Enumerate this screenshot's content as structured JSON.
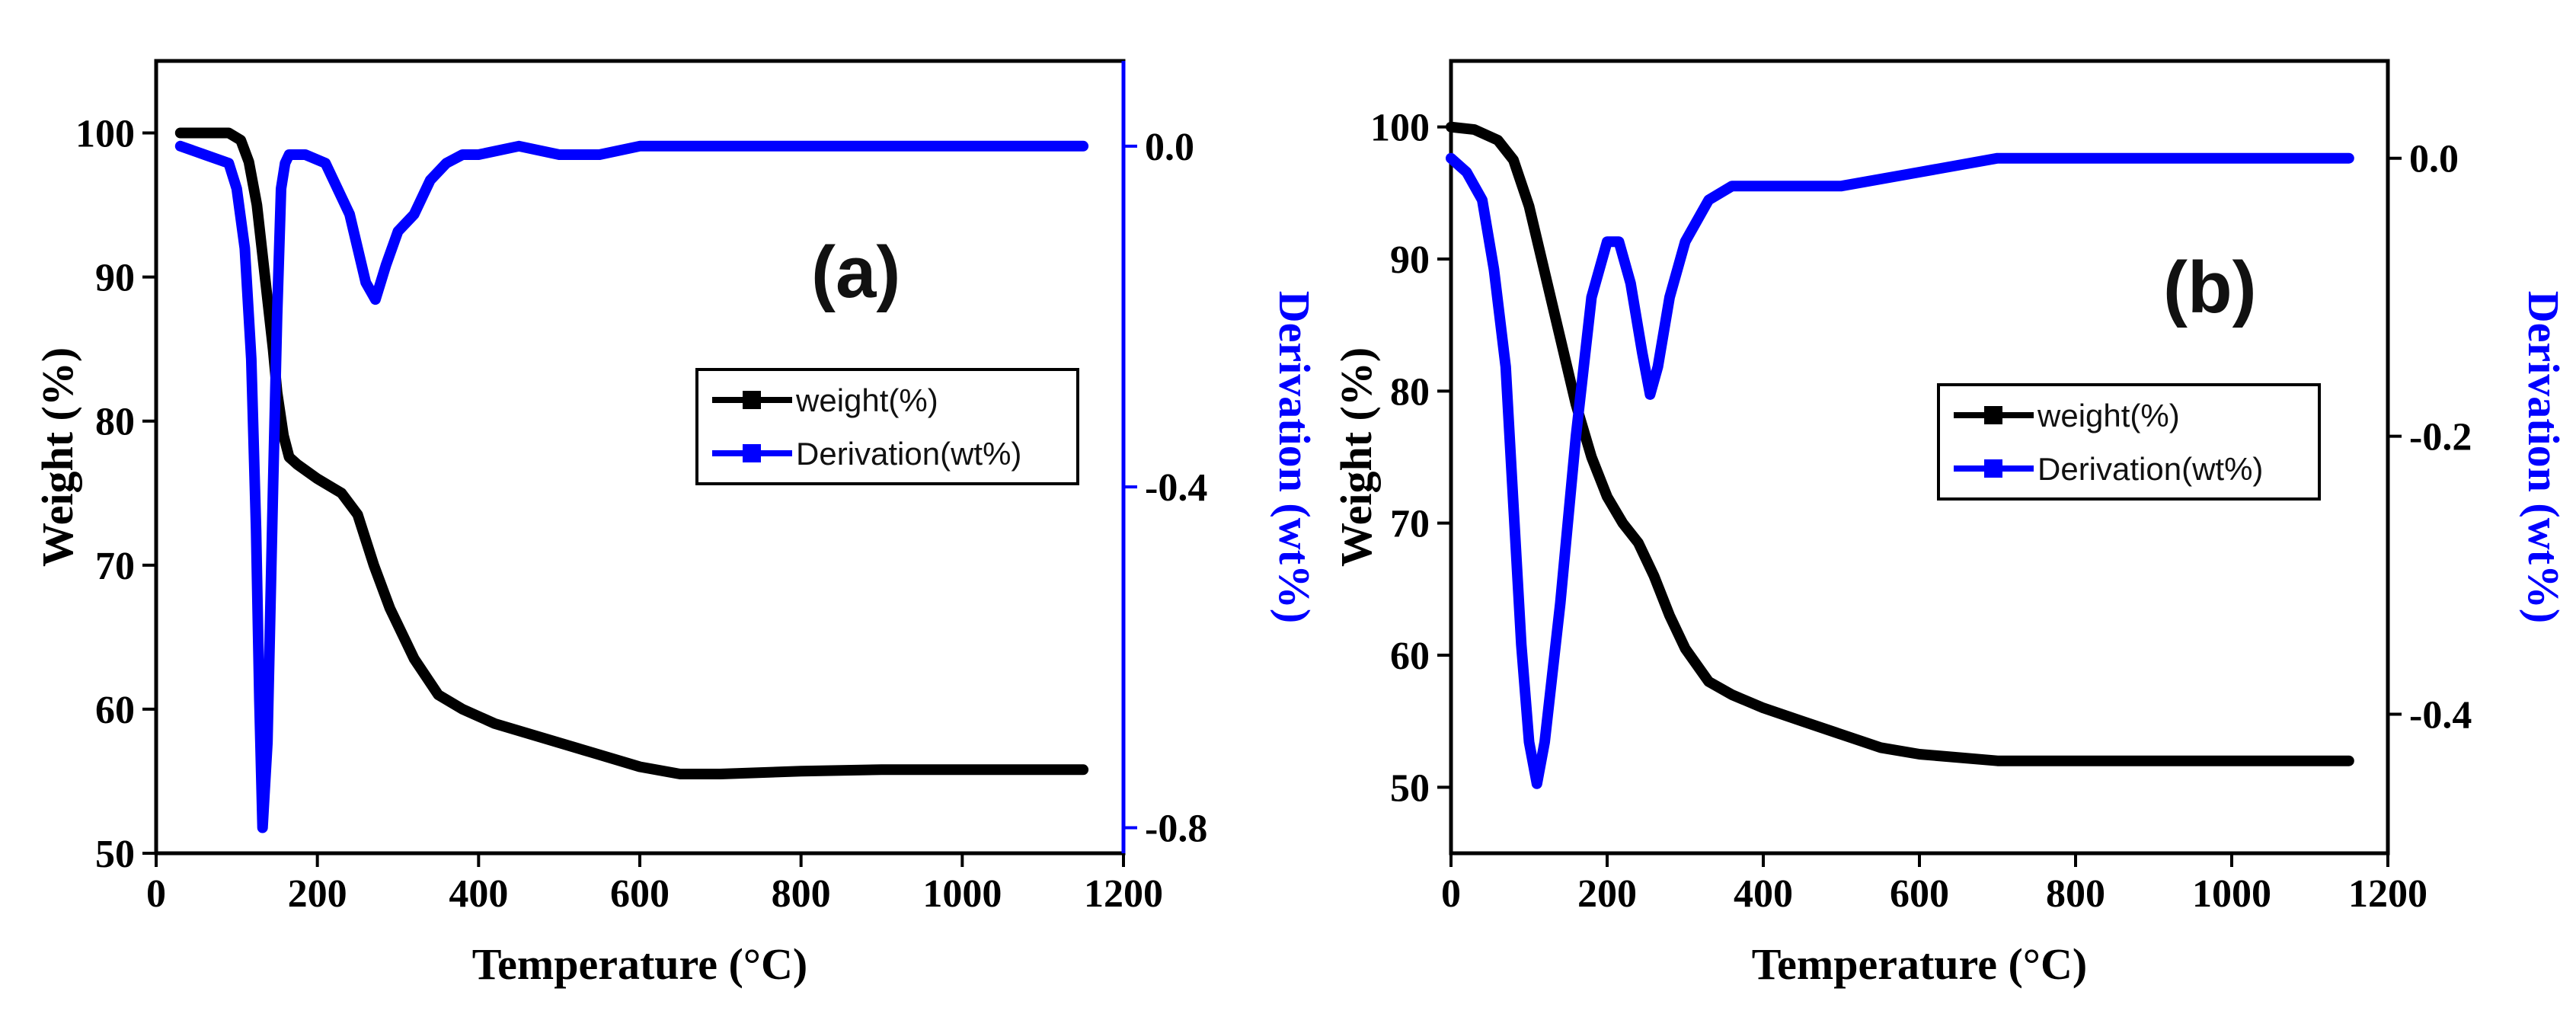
{
  "chart_data": [
    {
      "type": "line",
      "panel_label": "(a)",
      "xlabel": "Temperature (°C)",
      "ylabel": "Weight (%)",
      "y2label": "Derivation (wt%)",
      "xlim": [
        0,
        1200
      ],
      "ylim": [
        50,
        105
      ],
      "y2lim": [
        -0.83,
        0.1
      ],
      "xticks": [
        "0",
        "200",
        "400",
        "600",
        "800",
        "1000",
        "1200"
      ],
      "yticks": [
        "50",
        "60",
        "70",
        "80",
        "90",
        "100"
      ],
      "y2ticks": [
        "-0.8",
        "-0.4",
        "0.0"
      ],
      "legend_position": "center-right",
      "colors": {
        "weight": "#000000",
        "derivation": "#0000ff"
      },
      "series": [
        {
          "name": "weight(%)",
          "axis": "left",
          "x": [
            30,
            60,
            90,
            105,
            115,
            125,
            135,
            145,
            150,
            158,
            165,
            175,
            200,
            230,
            250,
            270,
            290,
            320,
            350,
            380,
            420,
            480,
            540,
            600,
            650,
            700,
            800,
            900,
            1000,
            1150
          ],
          "values": [
            100,
            100,
            100,
            99.5,
            98,
            95,
            90,
            85,
            82,
            79,
            77.5,
            77,
            76,
            75,
            73.5,
            70,
            67,
            63.5,
            61,
            60,
            59,
            58,
            57,
            56,
            55.5,
            55.5,
            55.7,
            55.8,
            55.8,
            55.8
          ]
        },
        {
          "name": "Derivation(wt%)",
          "axis": "right",
          "x": [
            30,
            60,
            90,
            100,
            110,
            118,
            124,
            128,
            132,
            138,
            145,
            150,
            155,
            160,
            165,
            170,
            175,
            185,
            210,
            240,
            260,
            272,
            285,
            300,
            320,
            340,
            360,
            380,
            400,
            450,
            500,
            550,
            600,
            700,
            800,
            1000,
            1150
          ],
          "values": [
            0.0,
            -0.01,
            -0.02,
            -0.05,
            -0.12,
            -0.25,
            -0.45,
            -0.65,
            -0.8,
            -0.7,
            -0.4,
            -0.2,
            -0.05,
            -0.02,
            -0.01,
            -0.01,
            -0.01,
            -0.01,
            -0.02,
            -0.08,
            -0.16,
            -0.18,
            -0.14,
            -0.1,
            -0.08,
            -0.04,
            -0.02,
            -0.01,
            -0.01,
            0.0,
            -0.01,
            -0.01,
            0.0,
            0.0,
            0.0,
            0.0,
            0.0
          ]
        }
      ]
    },
    {
      "type": "line",
      "panel_label": "(b)",
      "xlabel": "Temperature (°C)",
      "ylabel": "Weight (%)",
      "y2label": "Derivation (wt%)",
      "xlim": [
        0,
        1200
      ],
      "ylim": [
        45,
        105
      ],
      "y2lim": [
        -0.5,
        0.07
      ],
      "xticks": [
        "0",
        "200",
        "400",
        "600",
        "800",
        "1000",
        "1200"
      ],
      "yticks": [
        "50",
        "60",
        "70",
        "80",
        "90",
        "100"
      ],
      "y2ticks": [
        "-0.4",
        "-0.2",
        "0.0"
      ],
      "legend_position": "center-right",
      "colors": {
        "weight": "#000000",
        "derivation": "#0000ff"
      },
      "series": [
        {
          "name": "weight(%)",
          "axis": "left",
          "x": [
            0,
            30,
            60,
            80,
            100,
            120,
            140,
            160,
            180,
            200,
            220,
            240,
            260,
            280,
            300,
            330,
            360,
            400,
            450,
            500,
            550,
            600,
            700,
            800,
            900,
            1000,
            1150
          ],
          "values": [
            100,
            99.8,
            99,
            97.5,
            94,
            89,
            84,
            79,
            75,
            72,
            70,
            68.5,
            66,
            63,
            60.5,
            58,
            57,
            56,
            55,
            54,
            53,
            52.5,
            52,
            52,
            52,
            52,
            52
          ]
        },
        {
          "name": "Derivation(wt%)",
          "axis": "right",
          "x": [
            0,
            20,
            40,
            55,
            70,
            80,
            90,
            100,
            110,
            120,
            140,
            160,
            180,
            200,
            215,
            230,
            245,
            255,
            265,
            280,
            300,
            330,
            360,
            400,
            450,
            500,
            600,
            700,
            800,
            900,
            1000,
            1150
          ],
          "values": [
            0.0,
            -0.01,
            -0.03,
            -0.08,
            -0.15,
            -0.25,
            -0.35,
            -0.42,
            -0.45,
            -0.42,
            -0.32,
            -0.2,
            -0.1,
            -0.06,
            -0.06,
            -0.09,
            -0.14,
            -0.17,
            -0.15,
            -0.1,
            -0.06,
            -0.03,
            -0.02,
            -0.02,
            -0.02,
            -0.02,
            -0.01,
            0.0,
            0.0,
            0.0,
            0.0,
            0.0
          ]
        }
      ]
    }
  ]
}
